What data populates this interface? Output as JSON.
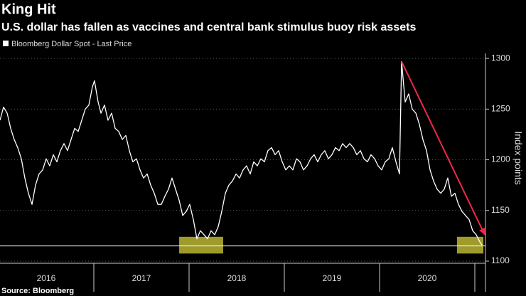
{
  "chart_data": {
    "type": "line",
    "title": "King Hit",
    "subtitle": "U.S. dollar has fallen as vaccines and central bank stimulus buoy risk assets",
    "y_axis_label": "Index points",
    "source": "Source: Bloomberg",
    "legend_position": "top-left",
    "grid": true,
    "xlim": [
      2016.015,
      2021.112
    ],
    "xticks": [
      {
        "value": 2016.5,
        "label": "2016"
      },
      {
        "value": 2017.5,
        "label": "2017"
      },
      {
        "value": 2018.5,
        "label": "2018"
      },
      {
        "value": 2019.5,
        "label": "2019"
      },
      {
        "value": 2020.5,
        "label": "2020"
      }
    ],
    "ylim": [
      1100,
      1305
    ],
    "yticks": [
      1100,
      1150,
      1200,
      1250,
      1300
    ],
    "reference_line": {
      "value": 1115,
      "color": "#ffffff"
    },
    "highlights": [
      {
        "x": [
          2017.896,
          2018.358
        ],
        "y": [
          1107.5,
          1124
        ],
        "color": "#d4cf3a"
      },
      {
        "x": [
          2020.813,
          2021.09
        ],
        "y": [
          1107.5,
          1124
        ],
        "color": "#d4cf3a"
      }
    ],
    "arrow": {
      "x": [
        2020.231,
        2021.104
      ],
      "y": [
        1297,
        1126
      ],
      "color": "#f0284a"
    },
    "series": [
      {
        "name": "Bloomberg Dollar Spot - Last Price",
        "color": "#ffffff",
        "x": [
          2016.015,
          2016.052,
          2016.09,
          2016.127,
          2016.164,
          2016.201,
          2016.239,
          2016.276,
          2016.313,
          2016.351,
          2016.388,
          2016.425,
          2016.463,
          2016.5,
          2016.537,
          2016.575,
          2016.612,
          2016.649,
          2016.687,
          2016.724,
          2016.761,
          2016.799,
          2016.836,
          2016.873,
          2016.91,
          2016.948,
          2016.985,
          2017.007,
          2017.045,
          2017.075,
          2017.112,
          2017.149,
          2017.187,
          2017.224,
          2017.261,
          2017.299,
          2017.336,
          2017.373,
          2017.41,
          2017.448,
          2017.485,
          2017.522,
          2017.56,
          2017.597,
          2017.634,
          2017.672,
          2017.709,
          2017.746,
          2017.784,
          2017.821,
          2017.858,
          2017.896,
          2017.933,
          2017.97,
          2018.007,
          2018.045,
          2018.082,
          2018.119,
          2018.157,
          2018.194,
          2018.231,
          2018.269,
          2018.306,
          2018.343,
          2018.381,
          2018.418,
          2018.455,
          2018.493,
          2018.53,
          2018.567,
          2018.604,
          2018.642,
          2018.679,
          2018.716,
          2018.754,
          2018.791,
          2018.828,
          2018.866,
          2018.903,
          2018.94,
          2018.978,
          2019.015,
          2019.052,
          2019.09,
          2019.127,
          2019.164,
          2019.201,
          2019.239,
          2019.276,
          2019.313,
          2019.351,
          2019.388,
          2019.425,
          2019.463,
          2019.5,
          2019.537,
          2019.575,
          2019.612,
          2019.649,
          2019.687,
          2019.724,
          2019.761,
          2019.799,
          2019.836,
          2019.873,
          2019.91,
          2019.948,
          2019.985,
          2020.022,
          2020.06,
          2020.097,
          2020.134,
          2020.172,
          2020.209,
          2020.231,
          2020.269,
          2020.306,
          2020.343,
          2020.381,
          2020.418,
          2020.455,
          2020.493,
          2020.53,
          2020.567,
          2020.604,
          2020.642,
          2020.679,
          2020.716,
          2020.754,
          2020.791,
          2020.828,
          2020.866,
          2020.903,
          2020.94,
          2020.978,
          2021.015,
          2021.052,
          2021.075
        ],
        "values": [
          1239,
          1252,
          1246,
          1231,
          1220,
          1212,
          1201,
          1182,
          1167,
          1156,
          1175,
          1186,
          1190,
          1201,
          1194,
          1205,
          1198,
          1209,
          1216,
          1209,
          1220,
          1231,
          1228,
          1239,
          1250,
          1254,
          1272,
          1278,
          1257,
          1246,
          1254,
          1239,
          1246,
          1231,
          1228,
          1220,
          1224,
          1209,
          1198,
          1201,
          1190,
          1182,
          1186,
          1175,
          1167,
          1156,
          1156,
          1164,
          1171,
          1182,
          1171,
          1160,
          1145,
          1149,
          1156,
          1141,
          1122,
          1130,
          1126,
          1122,
          1130,
          1126,
          1134,
          1149,
          1167,
          1175,
          1179,
          1186,
          1182,
          1190,
          1194,
          1186,
          1198,
          1194,
          1201,
          1198,
          1209,
          1212,
          1205,
          1209,
          1198,
          1190,
          1194,
          1190,
          1201,
          1198,
          1190,
          1194,
          1201,
          1205,
          1198,
          1205,
          1209,
          1201,
          1205,
          1212,
          1209,
          1216,
          1212,
          1216,
          1212,
          1205,
          1209,
          1201,
          1198,
          1205,
          1201,
          1194,
          1190,
          1198,
          1201,
          1212,
          1198,
          1186,
          1297,
          1257,
          1265,
          1250,
          1246,
          1235,
          1220,
          1209,
          1190,
          1179,
          1171,
          1167,
          1171,
          1182,
          1164,
          1167,
          1156,
          1149,
          1145,
          1141,
          1130,
          1126,
          1119,
          1116
        ]
      }
    ]
  }
}
